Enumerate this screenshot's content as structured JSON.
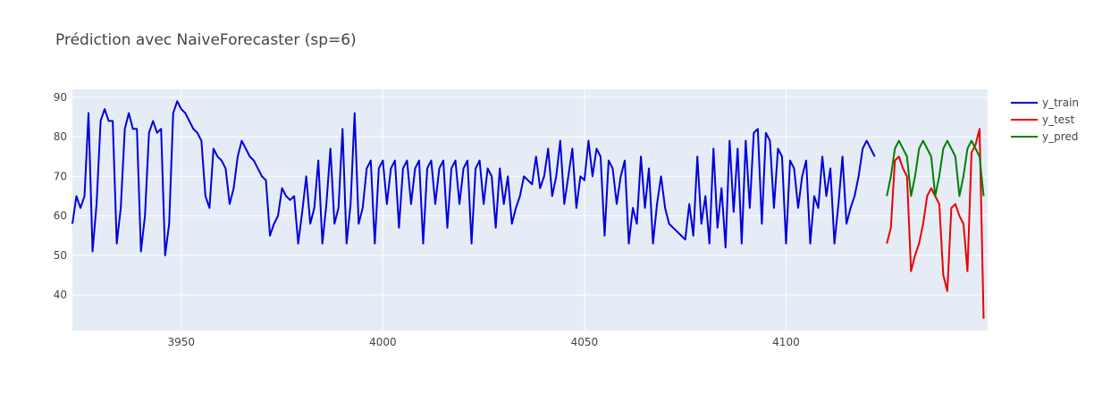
{
  "chart_data": {
    "type": "line",
    "title": "Prédiction avec NaiveForecaster (sp=6)",
    "xlabel": "",
    "ylabel": "",
    "xlim": [
      3923,
      4150
    ],
    "ylim": [
      31,
      92
    ],
    "x_ticks": [
      3950,
      4000,
      4050,
      4100
    ],
    "y_ticks": [
      40,
      50,
      60,
      70,
      80,
      90
    ],
    "grid": true,
    "legend_position": "top-right",
    "background_color": "#e5ecf6",
    "series": [
      {
        "name": "y_train",
        "color": "#0000dd",
        "x_start": 3923,
        "values": [
          58,
          65,
          62,
          65,
          86,
          51,
          63,
          84,
          87,
          84,
          84,
          53,
          62,
          82,
          86,
          82,
          82,
          51,
          60,
          81,
          84,
          81,
          82,
          50,
          58,
          86,
          89,
          87,
          86,
          84,
          82,
          81,
          79,
          65,
          62,
          77,
          75,
          74,
          72,
          63,
          67,
          75,
          79,
          77,
          75,
          74,
          72,
          70,
          69,
          55,
          58,
          60,
          67,
          65,
          64,
          65,
          53,
          61,
          70,
          58,
          62,
          74,
          53,
          63,
          77,
          58,
          62,
          82,
          53,
          63,
          86,
          58,
          62,
          72,
          74,
          53,
          72,
          74,
          63,
          72,
          74,
          57,
          72,
          74,
          63,
          72,
          74,
          53,
          72,
          74,
          63,
          72,
          74,
          57,
          72,
          74,
          63,
          72,
          74,
          53,
          72,
          74,
          63,
          72,
          70,
          57,
          72,
          63,
          70,
          58,
          62,
          65,
          70,
          69,
          68,
          75,
          67,
          70,
          77,
          65,
          70,
          79,
          63,
          70,
          77,
          62,
          70,
          69,
          79,
          70,
          77,
          75,
          55,
          74,
          72,
          63,
          70,
          74,
          53,
          62,
          58,
          75,
          62,
          72,
          53,
          63,
          70,
          62,
          58,
          57,
          56,
          55,
          54,
          63,
          55,
          75,
          58,
          65,
          53,
          77,
          57,
          67,
          52,
          79,
          61,
          77,
          53,
          79,
          62,
          81,
          82,
          58,
          81,
          79,
          62,
          77,
          75,
          53,
          74,
          72,
          62,
          70,
          74,
          53,
          65,
          62,
          75,
          65,
          72,
          53,
          63,
          75,
          58,
          62,
          65,
          70,
          77,
          79,
          77,
          75
        ]
      },
      {
        "name": "y_test",
        "color": "#ee0000",
        "x_start": 4125,
        "values": [
          53,
          57,
          74,
          75,
          72,
          70,
          46,
          50,
          53,
          58,
          65,
          67,
          65,
          63,
          45,
          41,
          62,
          63,
          60,
          58,
          46,
          76,
          78,
          82,
          34
        ]
      },
      {
        "name": "y_pred",
        "color": "#008000",
        "x_start": 4125,
        "values": [
          65,
          70,
          77,
          79,
          77,
          75,
          65,
          70,
          77,
          79,
          77,
          75,
          65,
          70,
          77,
          79,
          77,
          75,
          65,
          70,
          77,
          79,
          77,
          75,
          65
        ]
      }
    ]
  }
}
